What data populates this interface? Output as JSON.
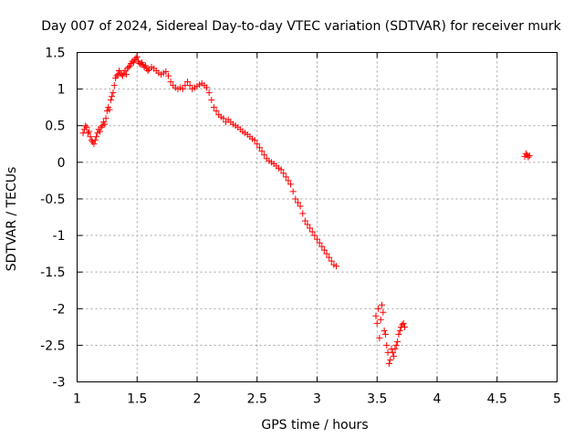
{
  "chart_data": {
    "type": "scatter",
    "title": "Day 007 of 2024, Sidereal Day-to-day VTEC variation (SDTVAR) for receiver murk",
    "xlabel": "GPS time / hours",
    "ylabel": "SDTVAR / TECUs",
    "xlim": [
      1,
      5
    ],
    "ylim": [
      -3,
      1.5
    ],
    "xticks": [
      1,
      1.5,
      2,
      2.5,
      3,
      3.5,
      4,
      4.5,
      5
    ],
    "xtick_labels": [
      "1",
      "1.5",
      "2",
      "2.5",
      "3",
      "3.5",
      "4",
      "4.5",
      "5"
    ],
    "yticks": [
      1.5,
      1,
      0.5,
      0,
      -0.5,
      -1,
      -1.5,
      -2,
      -2.5,
      -3
    ],
    "ytick_labels": [
      "1.5",
      "1",
      "0.5",
      "0",
      "-0.5",
      "-1",
      "-1.5",
      "-2",
      "-2.5",
      "-3"
    ],
    "grid": true,
    "marker": "+",
    "color": "#ff0000",
    "series": [
      {
        "name": "SDTVAR",
        "x": [
          1.05,
          1.06,
          1.07,
          1.08,
          1.09,
          1.1,
          1.11,
          1.12,
          1.13,
          1.14,
          1.15,
          1.16,
          1.17,
          1.18,
          1.19,
          1.2,
          1.21,
          1.22,
          1.23,
          1.24,
          1.25,
          1.26,
          1.27,
          1.28,
          1.29,
          1.3,
          1.31,
          1.32,
          1.33,
          1.34,
          1.35,
          1.36,
          1.37,
          1.38,
          1.39,
          1.4,
          1.41,
          1.42,
          1.43,
          1.44,
          1.45,
          1.46,
          1.47,
          1.48,
          1.49,
          1.5,
          1.51,
          1.52,
          1.53,
          1.54,
          1.55,
          1.56,
          1.57,
          1.58,
          1.59,
          1.6,
          1.62,
          1.64,
          1.66,
          1.68,
          1.7,
          1.72,
          1.74,
          1.76,
          1.78,
          1.8,
          1.82,
          1.84,
          1.86,
          1.88,
          1.9,
          1.92,
          1.94,
          1.96,
          1.98,
          2.0,
          2.02,
          2.04,
          2.06,
          2.08,
          2.1,
          2.12,
          2.14,
          2.16,
          2.18,
          2.2,
          2.22,
          2.24,
          2.26,
          2.28,
          2.3,
          2.32,
          2.34,
          2.36,
          2.38,
          2.4,
          2.42,
          2.44,
          2.46,
          2.48,
          2.5,
          2.52,
          2.54,
          2.56,
          2.58,
          2.6,
          2.62,
          2.64,
          2.66,
          2.68,
          2.7,
          2.72,
          2.74,
          2.76,
          2.78,
          2.8,
          2.82,
          2.84,
          2.86,
          2.88,
          2.9,
          2.92,
          2.94,
          2.96,
          2.98,
          3.0,
          3.02,
          3.04,
          3.06,
          3.08,
          3.1,
          3.12,
          3.14,
          3.16,
          3.49,
          3.5,
          3.51,
          3.52,
          3.53,
          3.54,
          3.55,
          3.56,
          3.57,
          3.58,
          3.59,
          3.6,
          3.61,
          3.62,
          3.63,
          3.64,
          3.65,
          3.66,
          3.67,
          3.68,
          3.69,
          3.7,
          3.71,
          3.72,
          3.73,
          4.73,
          4.74,
          4.75,
          4.76,
          4.77
        ],
        "y": [
          0.4,
          0.45,
          0.5,
          0.48,
          0.4,
          0.42,
          0.35,
          0.3,
          0.28,
          0.25,
          0.3,
          0.35,
          0.4,
          0.45,
          0.42,
          0.48,
          0.5,
          0.55,
          0.52,
          0.6,
          0.7,
          0.75,
          0.72,
          0.85,
          0.9,
          0.95,
          1.05,
          1.15,
          1.18,
          1.2,
          1.25,
          1.22,
          1.2,
          1.18,
          1.22,
          1.25,
          1.2,
          1.28,
          1.3,
          1.32,
          1.35,
          1.38,
          1.36,
          1.4,
          1.42,
          1.44,
          1.38,
          1.35,
          1.34,
          1.36,
          1.33,
          1.3,
          1.32,
          1.28,
          1.25,
          1.27,
          1.3,
          1.28,
          1.25,
          1.22,
          1.2,
          1.22,
          1.24,
          1.18,
          1.1,
          1.05,
          1.02,
          1.0,
          1.02,
          1.0,
          1.05,
          1.1,
          1.05,
          1.0,
          1.02,
          1.04,
          1.06,
          1.08,
          1.05,
          1.02,
          0.95,
          0.85,
          0.75,
          0.7,
          0.65,
          0.62,
          0.6,
          0.55,
          0.58,
          0.55,
          0.52,
          0.5,
          0.48,
          0.45,
          0.42,
          0.4,
          0.38,
          0.35,
          0.32,
          0.3,
          0.25,
          0.2,
          0.15,
          0.1,
          0.05,
          0.02,
          0.0,
          -0.02,
          -0.05,
          -0.08,
          -0.1,
          -0.15,
          -0.2,
          -0.25,
          -0.3,
          -0.4,
          -0.5,
          -0.55,
          -0.6,
          -0.7,
          -0.8,
          -0.85,
          -0.9,
          -0.95,
          -1.0,
          -1.05,
          -1.1,
          -1.15,
          -1.2,
          -1.25,
          -1.3,
          -1.35,
          -1.4,
          -1.42,
          -2.1,
          -2.2,
          -2.0,
          -2.4,
          -2.15,
          -1.95,
          -2.05,
          -2.3,
          -2.35,
          -2.5,
          -2.6,
          -2.75,
          -2.7,
          -2.55,
          -2.6,
          -2.65,
          -2.55,
          -2.5,
          -2.45,
          -2.35,
          -2.3,
          -2.25,
          -2.22,
          -2.2,
          -2.25,
          0.08,
          0.12,
          0.1,
          0.07,
          0.09
        ]
      }
    ]
  }
}
